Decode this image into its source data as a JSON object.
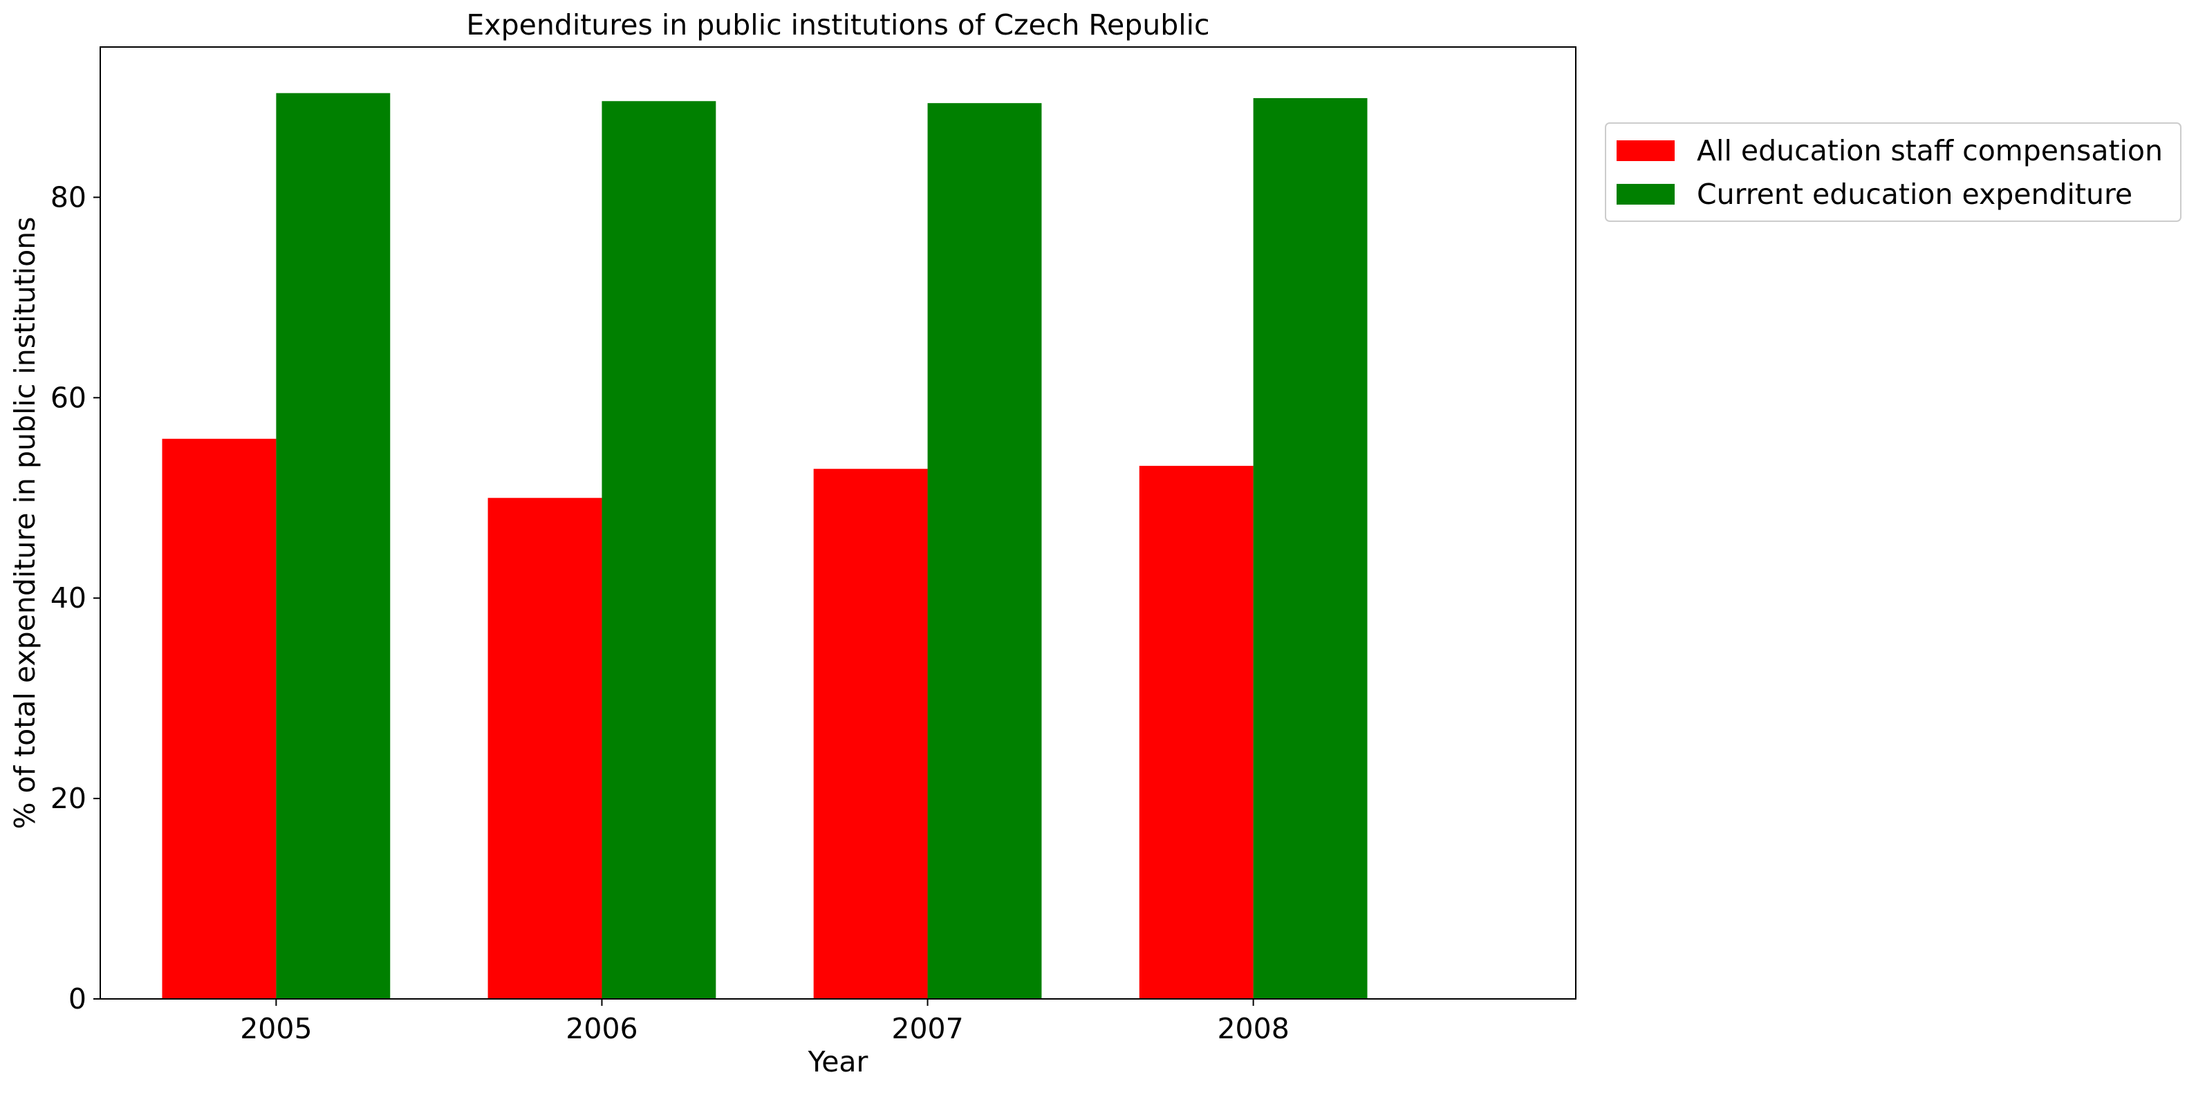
{
  "chart_data": {
    "type": "bar",
    "title": "Expenditures in public institutions of Czech Republic",
    "xlabel": "Year",
    "ylabel": "% of total expenditure in public institutions",
    "categories": [
      "2005",
      "2006",
      "2007",
      "2008"
    ],
    "series": [
      {
        "name": "All education staff compensation",
        "color": "#ff0000",
        "values": [
          55.9,
          50.0,
          52.9,
          53.2
        ]
      },
      {
        "name": "Current education expenditure",
        "color": "#008000",
        "values": [
          90.4,
          89.6,
          89.4,
          89.9
        ]
      }
    ],
    "ylim": [
      0,
      95
    ],
    "yticks": [
      0,
      20,
      40,
      60,
      80
    ],
    "grid": false,
    "legend_position": "outside-top-right"
  }
}
